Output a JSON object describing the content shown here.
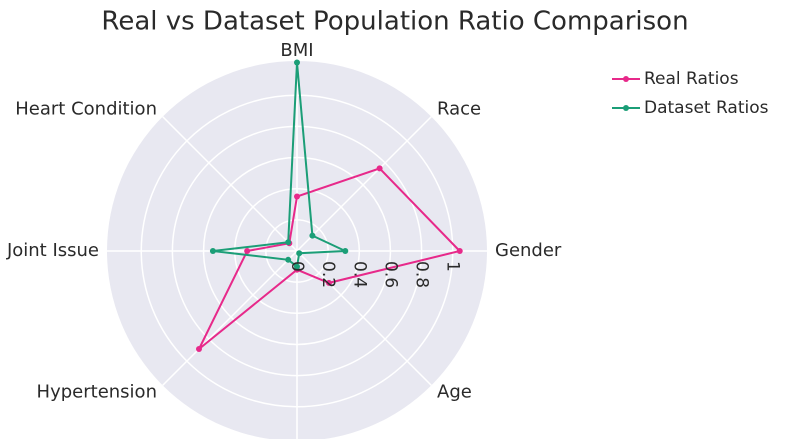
{
  "chart_data": {
    "type": "radar",
    "title": "Real vs Dataset Population Ratio Comparison",
    "categories": [
      "Gender",
      "Race",
      "BMI",
      "Heart Condition",
      "Joint Issue",
      "Hypertension",
      null,
      "Age"
    ],
    "series": [
      {
        "name": "Real Ratios",
        "color": "#e7298a",
        "values": [
          1.045,
          0.75,
          0.35,
          0.07,
          0.32,
          0.89,
          0.12,
          0.29
        ]
      },
      {
        "name": "Dataset Ratios",
        "color": "#1b9e77",
        "values": [
          0.31,
          0.14,
          1.21,
          0.08,
          0.54,
          0.08,
          0.1,
          0.02
        ]
      }
    ],
    "rlim": [
      0,
      1.22
    ],
    "rticks": [
      0,
      0.2,
      0.4,
      0.6,
      0.8,
      1
    ],
    "grid": true,
    "legend": "top-right"
  }
}
